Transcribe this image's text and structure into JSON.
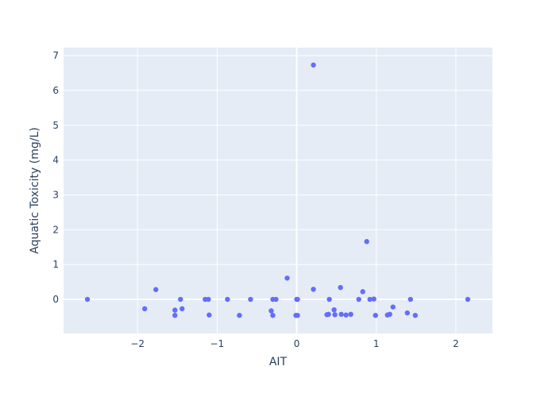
{
  "chart_data": {
    "type": "scatter",
    "title": "",
    "xlabel": "AIT",
    "ylabel": "Aquatic Toxicity (mg/L)",
    "xlim": [
      -2.93,
      2.46
    ],
    "ylim": [
      -0.98,
      7.23
    ],
    "x_ticks": [
      -2,
      -1,
      0,
      1,
      2
    ],
    "x_tick_labels": [
      "−2",
      "−1",
      "0",
      "1",
      "2"
    ],
    "y_ticks": [
      0,
      1,
      2,
      3,
      4,
      5,
      6,
      7
    ],
    "y_tick_labels": [
      "0",
      "1",
      "2",
      "3",
      "4",
      "5",
      "6",
      "7"
    ],
    "grid": true,
    "colors": {
      "marker": "#636efa",
      "plot_background": "#e5ecf6",
      "grid": "#ffffff",
      "text": "#2a3f5f"
    },
    "points": [
      {
        "x": -2.63,
        "y": 0.0
      },
      {
        "x": -1.91,
        "y": -0.27
      },
      {
        "x": -1.77,
        "y": 0.28
      },
      {
        "x": -1.53,
        "y": -0.31
      },
      {
        "x": -1.53,
        "y": -0.46
      },
      {
        "x": -1.46,
        "y": 0.0
      },
      {
        "x": -1.44,
        "y": -0.27
      },
      {
        "x": -1.15,
        "y": 0.0
      },
      {
        "x": -1.11,
        "y": 0.0
      },
      {
        "x": -1.1,
        "y": -0.45
      },
      {
        "x": -0.87,
        "y": 0.0
      },
      {
        "x": -0.72,
        "y": -0.46
      },
      {
        "x": -0.58,
        "y": 0.0
      },
      {
        "x": -0.32,
        "y": -0.33
      },
      {
        "x": -0.3,
        "y": 0.0
      },
      {
        "x": -0.3,
        "y": -0.46
      },
      {
        "x": -0.26,
        "y": 0.0
      },
      {
        "x": -0.12,
        "y": 0.61
      },
      {
        "x": 0.0,
        "y": 0.0
      },
      {
        "x": 0.01,
        "y": 0.0
      },
      {
        "x": -0.01,
        "y": -0.46
      },
      {
        "x": 0.01,
        "y": -0.46
      },
      {
        "x": 0.21,
        "y": 6.73
      },
      {
        "x": 0.21,
        "y": 0.29
      },
      {
        "x": 0.38,
        "y": -0.44
      },
      {
        "x": 0.4,
        "y": -0.43
      },
      {
        "x": 0.41,
        "y": 0.0
      },
      {
        "x": 0.47,
        "y": -0.3
      },
      {
        "x": 0.48,
        "y": -0.44
      },
      {
        "x": 0.55,
        "y": 0.34
      },
      {
        "x": 0.56,
        "y": -0.43
      },
      {
        "x": 0.62,
        "y": -0.45
      },
      {
        "x": 0.68,
        "y": -0.43
      },
      {
        "x": 0.78,
        "y": 0.0
      },
      {
        "x": 0.83,
        "y": 0.22
      },
      {
        "x": 0.88,
        "y": 1.66
      },
      {
        "x": 0.92,
        "y": 0.0
      },
      {
        "x": 0.97,
        "y": 0.01
      },
      {
        "x": 0.99,
        "y": -0.46
      },
      {
        "x": 1.14,
        "y": -0.45
      },
      {
        "x": 1.17,
        "y": -0.43
      },
      {
        "x": 1.21,
        "y": -0.22
      },
      {
        "x": 1.39,
        "y": -0.39
      },
      {
        "x": 1.43,
        "y": 0.0
      },
      {
        "x": 1.49,
        "y": -0.46
      },
      {
        "x": 2.15,
        "y": 0.0
      }
    ]
  }
}
